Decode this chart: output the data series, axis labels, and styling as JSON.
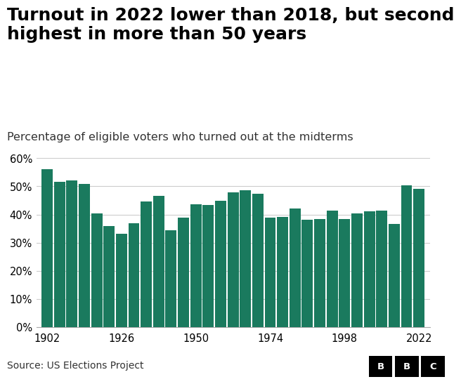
{
  "title": "Turnout in 2022 lower than 2018, but second\nhighest in more than 50 years",
  "subtitle": "Percentage of eligible voters who turned out at the midterms",
  "source": "Source: US Elections Project",
  "bar_color": "#1a7a5e",
  "background_color": "#ffffff",
  "years": [
    1902,
    1906,
    1910,
    1914,
    1918,
    1922,
    1926,
    1930,
    1934,
    1938,
    1942,
    1946,
    1950,
    1954,
    1958,
    1962,
    1966,
    1970,
    1974,
    1978,
    1982,
    1986,
    1990,
    1994,
    1998,
    2002,
    2006,
    2010,
    2014,
    2018,
    2022
  ],
  "values": [
    56.0,
    51.7,
    52.2,
    50.8,
    40.3,
    35.8,
    33.1,
    36.8,
    44.7,
    46.6,
    34.3,
    38.9,
    43.7,
    43.5,
    44.9,
    47.9,
    48.7,
    47.4,
    38.9,
    39.1,
    42.1,
    38.1,
    38.5,
    41.5,
    38.5,
    40.4,
    41.1,
    41.4,
    36.7,
    50.3,
    49.0
  ],
  "ylim": [
    0,
    60
  ],
  "yticks": [
    0,
    10,
    20,
    30,
    40,
    50,
    60
  ],
  "xticks": [
    1902,
    1926,
    1950,
    1974,
    1998,
    2022
  ],
  "xlim": [
    1898.5,
    2025.5
  ],
  "bar_width": 3.6,
  "grid_color": "#cccccc",
  "title_fontsize": 18,
  "subtitle_fontsize": 11.5,
  "axis_fontsize": 10.5,
  "source_fontsize": 10,
  "bbc_letters": [
    "B",
    "B",
    "C"
  ]
}
